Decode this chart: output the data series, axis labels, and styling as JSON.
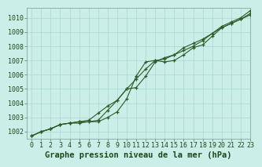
{
  "title": "Graphe pression niveau de la mer (hPa)",
  "background_color": "#cceee8",
  "plot_bg_color": "#cceee8",
  "grid_color": "#a8d8d0",
  "line_color": "#2d5a27",
  "xlim": [
    -0.5,
    23
  ],
  "ylim": [
    1001.5,
    1010.7
  ],
  "yticks": [
    1002,
    1003,
    1004,
    1005,
    1006,
    1007,
    1008,
    1009,
    1010
  ],
  "xticks": [
    0,
    1,
    2,
    3,
    4,
    5,
    6,
    7,
    8,
    9,
    10,
    11,
    12,
    13,
    14,
    15,
    16,
    17,
    18,
    19,
    20,
    21,
    22,
    23
  ],
  "series1": [
    1001.7,
    1002.0,
    1002.2,
    1002.5,
    1002.6,
    1002.6,
    1002.7,
    1002.7,
    1003.0,
    1003.4,
    1004.3,
    1005.9,
    1006.9,
    1007.0,
    1006.9,
    1007.0,
    1007.4,
    1007.9,
    1008.1,
    1008.7,
    1009.3,
    1009.6,
    1009.9,
    1010.2
  ],
  "series2": [
    1001.7,
    1002.0,
    1002.2,
    1002.5,
    1002.6,
    1002.7,
    1002.7,
    1002.8,
    1003.5,
    1004.2,
    1005.0,
    1005.7,
    1006.4,
    1007.0,
    1007.1,
    1007.4,
    1007.9,
    1008.2,
    1008.5,
    1008.9,
    1009.3,
    1009.6,
    1009.9,
    1010.3
  ],
  "series3": [
    1001.7,
    1002.0,
    1002.2,
    1002.5,
    1002.6,
    1002.7,
    1002.8,
    1003.3,
    1003.8,
    1004.2,
    1005.0,
    1005.1,
    1005.9,
    1006.9,
    1007.2,
    1007.4,
    1007.7,
    1008.0,
    1008.4,
    1008.9,
    1009.4,
    1009.7,
    1010.0,
    1010.5
  ],
  "title_fontsize": 7.5,
  "tick_fontsize": 6,
  "title_color": "#1a4a1a"
}
